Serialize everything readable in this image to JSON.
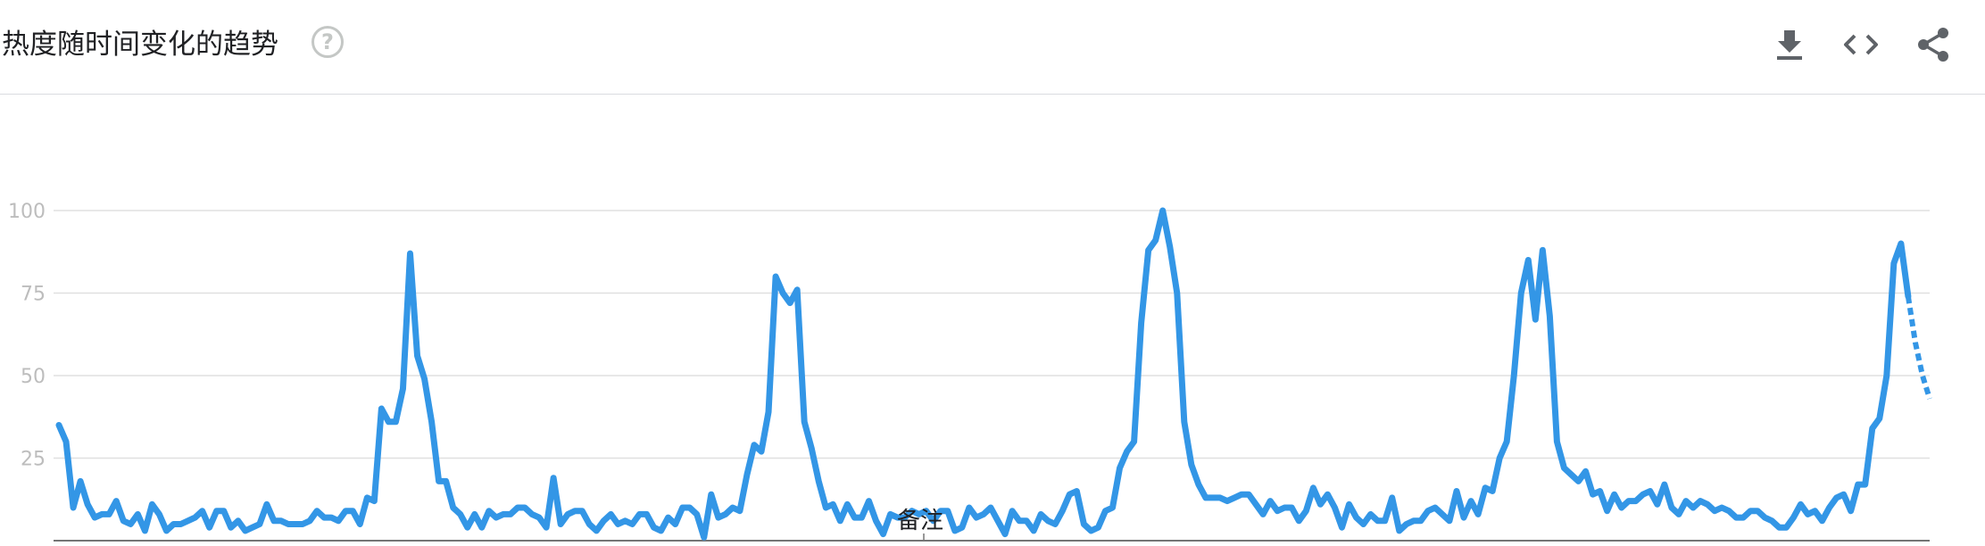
{
  "header": {
    "title": "热度随时间变化的趋势",
    "help_icon": "help-circle-icon",
    "tools": [
      "download-icon",
      "embed-code-icon",
      "share-icon"
    ]
  },
  "annotation_label": "备注",
  "colors": {
    "line": "#3396e6",
    "grid": "#e0e0e0",
    "axis": "#757575",
    "tick_label": "#bdbdbd"
  },
  "chart_data": {
    "type": "line",
    "title": "热度随时间变化的趋势",
    "xlabel": "",
    "ylabel": "",
    "ylim": [
      0,
      100
    ],
    "yticks": [
      25,
      50,
      75,
      100
    ],
    "grid": true,
    "legend": "none",
    "partial_tail": 3,
    "series": [
      {
        "values": [
          35,
          30,
          10,
          18,
          11,
          7,
          8,
          8,
          12,
          6,
          5,
          8,
          3,
          11,
          8,
          3,
          5,
          5,
          6,
          7,
          9,
          4,
          9,
          9,
          4,
          6,
          3,
          4,
          5,
          11,
          6,
          6,
          5,
          5,
          5,
          6,
          9,
          7,
          7,
          6,
          9,
          9,
          5,
          13,
          12,
          40,
          36,
          36,
          46,
          87,
          56,
          49,
          36,
          18,
          18,
          10,
          8,
          4,
          8,
          4,
          9,
          7,
          8,
          8,
          10,
          10,
          8,
          7,
          4,
          19,
          5,
          8,
          9,
          9,
          5,
          3,
          6,
          8,
          5,
          6,
          5,
          8,
          8,
          4,
          3,
          7,
          5,
          10,
          10,
          8,
          1,
          14,
          7,
          8,
          10,
          9,
          20,
          29,
          27,
          39,
          80,
          75,
          72,
          76,
          36,
          28,
          18,
          10,
          11,
          6,
          11,
          7,
          7,
          12,
          6,
          2,
          8,
          7,
          7,
          9,
          8,
          9,
          6,
          9,
          9,
          3,
          4,
          10,
          7,
          8,
          10,
          6,
          2,
          9,
          6,
          6,
          3,
          8,
          6,
          5,
          9,
          14,
          15,
          5,
          3,
          4,
          9,
          10,
          22,
          27,
          30,
          66,
          88,
          91,
          100,
          89,
          75,
          36,
          23,
          17,
          13,
          13,
          13,
          12,
          13,
          14,
          14,
          11,
          8,
          12,
          9,
          10,
          10,
          6,
          9,
          16,
          11,
          14,
          10,
          4,
          11,
          7,
          5,
          8,
          6,
          6,
          13,
          3,
          5,
          6,
          6,
          9,
          10,
          8,
          6,
          15,
          7,
          12,
          8,
          16,
          15,
          25,
          30,
          50,
          75,
          85,
          67,
          88,
          68,
          30,
          22,
          20,
          18,
          21,
          14,
          15,
          9,
          14,
          10,
          12,
          12,
          14,
          15,
          11,
          17,
          10,
          8,
          12,
          10,
          12,
          11,
          9,
          10,
          9,
          7,
          7,
          9,
          9,
          7,
          6,
          4,
          4,
          7,
          11,
          8,
          9,
          6,
          10,
          13,
          14,
          9,
          17,
          17,
          34,
          37,
          50,
          84,
          90,
          74,
          60,
          50,
          43
        ]
      }
    ]
  }
}
